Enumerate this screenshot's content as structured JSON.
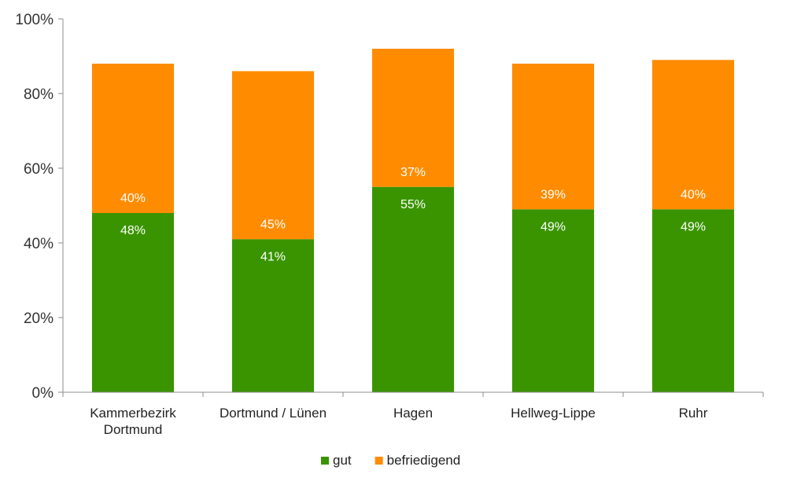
{
  "chart_data": {
    "type": "bar",
    "stacked": true,
    "categories": [
      [
        "Kammerbezirk",
        "Dortmund"
      ],
      [
        "Dortmund / Lünen"
      ],
      [
        "Hagen"
      ],
      [
        "Hellweg-Lippe"
      ],
      [
        "Ruhr"
      ]
    ],
    "series": [
      {
        "name": "gut",
        "color": "#3a9400",
        "values": [
          48,
          41,
          55,
          49,
          49
        ],
        "labels": [
          "48%",
          "41%",
          "55%",
          "49%",
          "49%"
        ]
      },
      {
        "name": "befriedigend",
        "color": "#ff8c00",
        "values": [
          40,
          45,
          37,
          39,
          40
        ],
        "labels": [
          "40%",
          "45%",
          "37%",
          "39%",
          "40%"
        ]
      }
    ],
    "y_ticks": [
      0,
      20,
      40,
      60,
      80,
      100
    ],
    "y_tick_labels": [
      "0%",
      "20%",
      "40%",
      "60%",
      "80%",
      "100%"
    ],
    "ylim": [
      0,
      100
    ],
    "grid": false,
    "legend_position": "bottom",
    "title": "",
    "xlabel": "",
    "ylabel": ""
  }
}
